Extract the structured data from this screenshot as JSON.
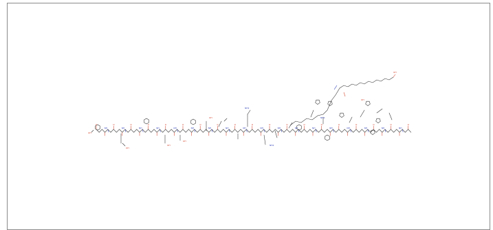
{
  "image": {
    "type": "chemical-structure",
    "atom_labels": {
      "oxygen": "O",
      "hydroxyl": "OH",
      "nitrogen": "N",
      "amine": "NH",
      "amine_terminal": "NH2",
      "acid_terminal": "OH"
    },
    "colors": {
      "frame": "#8a8a8a",
      "bond": "#2b2b2b",
      "oxygen": "#d3402a",
      "nitrogen": "#2f3fb7",
      "background": "#ffffff"
    }
  }
}
